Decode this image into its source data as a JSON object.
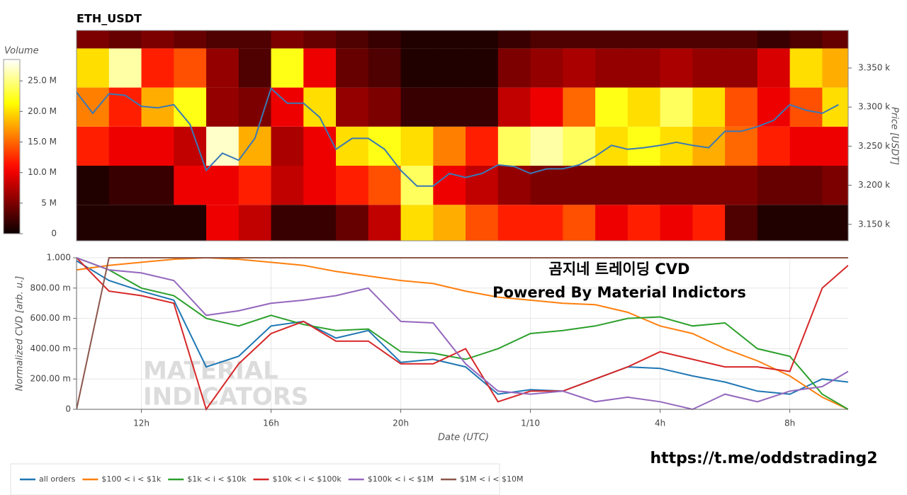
{
  "chart_data": [
    {
      "type": "heatmap",
      "title": "ETH_USDT",
      "x_bins": [
        10,
        11,
        12,
        13,
        14,
        15,
        16,
        17,
        18,
        19,
        20,
        21,
        22,
        23,
        24,
        25,
        26,
        27,
        28,
        29,
        30,
        31,
        32,
        33,
        34
      ],
      "y_bins": [
        3125,
        3175,
        3225,
        3275,
        3325,
        3375,
        3425
      ],
      "values": [
        [
          1,
          1,
          1,
          1,
          10,
          8,
          2,
          2,
          4,
          8,
          20,
          18,
          14,
          12,
          12,
          14,
          10,
          12,
          10,
          12,
          3,
          1,
          1,
          1
        ],
        [
          1,
          2,
          2,
          10,
          10,
          12,
          8,
          10,
          12,
          14,
          24,
          10,
          8,
          6,
          5,
          5,
          5,
          5,
          5,
          5,
          5,
          4,
          4,
          5
        ],
        [
          12,
          10,
          10,
          8,
          27,
          18,
          7,
          10,
          20,
          22,
          20,
          16,
          12,
          24,
          26,
          24,
          20,
          22,
          20,
          18,
          15,
          12,
          10,
          10
        ],
        [
          16,
          12,
          18,
          22,
          6,
          5,
          10,
          20,
          6,
          5,
          2,
          2,
          2,
          8,
          10,
          15,
          22,
          20,
          24,
          20,
          14,
          10,
          14,
          20
        ],
        [
          20,
          26,
          12,
          14,
          6,
          3,
          22,
          10,
          4,
          3,
          1,
          1,
          1,
          5,
          6,
          7,
          6,
          6,
          7,
          6,
          6,
          9,
          20,
          18
        ],
        [
          5,
          4,
          5,
          4,
          3,
          3,
          5,
          4,
          3,
          2,
          1,
          1,
          1,
          2,
          3,
          3,
          3,
          3,
          3,
          3,
          3,
          2,
          3,
          4
        ]
      ],
      "colormap": "hot",
      "colorbar": {
        "title": "Volume",
        "lim": [
          0,
          28.5
        ],
        "ticks": [
          0,
          {
            "value": 5,
            "label": "5 M"
          },
          {
            "value": 10,
            "label": "10.0 M"
          },
          {
            "value": 15,
            "label": "15.0 M"
          },
          {
            "value": 20,
            "label": "20.0 M"
          },
          {
            "value": 25,
            "label": "25.0 M"
          }
        ]
      },
      "xlim": [
        10,
        33.8
      ],
      "ylabel": "Price [USDT]",
      "ylim": [
        3129,
        3398
      ],
      "yticks": [
        {
          "value": 3150,
          "label": "3.150 k"
        },
        {
          "value": 3200,
          "label": "3.200 k"
        },
        {
          "value": 3250,
          "label": "3.250 k"
        },
        {
          "value": 3300,
          "label": "3.300 k"
        },
        {
          "value": 3350,
          "label": "3.350 k"
        }
      ],
      "line": {
        "color": "#3a78b5",
        "x": [
          10,
          10.5,
          11,
          11.5,
          12,
          12.5,
          13,
          13.5,
          14,
          14.5,
          15,
          15.5,
          16,
          16.5,
          17,
          17.5,
          18,
          18.5,
          19,
          19.5,
          20,
          20.5,
          21,
          21.5,
          22,
          22.5,
          23,
          23.5,
          24,
          24.5,
          25,
          25.5,
          26,
          26.5,
          27,
          27.5,
          28,
          28.5,
          29,
          29.5,
          30,
          30.5,
          31,
          31.5,
          32,
          32.5,
          33,
          33.5
        ],
        "values": [
          3319,
          3292,
          3317,
          3315,
          3301,
          3299,
          3303,
          3278,
          3219,
          3241,
          3232,
          3260,
          3324,
          3305,
          3305,
          3287,
          3246,
          3260,
          3260,
          3246,
          3219,
          3199,
          3199,
          3215,
          3210,
          3215,
          3226,
          3224,
          3215,
          3221,
          3221,
          3226,
          3237,
          3251,
          3246,
          3248,
          3251,
          3255,
          3251,
          3248,
          3269,
          3269,
          3275,
          3283,
          3303,
          3296,
          3292,
          3303
        ]
      }
    },
    {
      "type": "line",
      "annotations": [
        "곰지네 트레이딩 CVD",
        "Powered By Material Indictors"
      ],
      "watermark": [
        "MATERIAL",
        "INDICATORS"
      ],
      "xlabel": "Date (UTC)",
      "ylabel": "Normalized CVD [arb. u.]",
      "xlim": [
        10,
        33.8
      ],
      "xticks": [
        {
          "value": 12,
          "label": "12h"
        },
        {
          "value": 16,
          "label": "16h"
        },
        {
          "value": 20,
          "label": "20h"
        },
        {
          "value": 24,
          "label": "1/10"
        },
        {
          "value": 28,
          "label": "4h"
        },
        {
          "value": 32,
          "label": "8h"
        }
      ],
      "ylim": [
        0,
        1
      ],
      "yticks": [
        0,
        {
          "value": 0.2,
          "label": "200.00 m"
        },
        {
          "value": 0.4,
          "label": "400.00 m"
        },
        {
          "value": 0.6,
          "label": "600.00 m"
        },
        {
          "value": 0.8,
          "label": "800.00 m"
        },
        {
          "value": 1,
          "label": "1.000"
        }
      ],
      "grid": true,
      "legend": "bottom",
      "x": [
        10,
        11,
        12,
        13,
        14,
        15,
        16,
        17,
        18,
        19,
        20,
        21,
        22,
        23,
        24,
        25,
        26,
        27,
        28,
        29,
        30,
        31,
        32,
        33,
        33.8
      ],
      "series": [
        {
          "name": "all orders",
          "color": "#1f77b4",
          "values": [
            0.98,
            0.85,
            0.78,
            0.72,
            0.28,
            0.35,
            0.55,
            0.58,
            0.47,
            0.52,
            0.31,
            0.33,
            0.28,
            0.1,
            0.13,
            0.12,
            0.2,
            0.28,
            0.27,
            0.22,
            0.18,
            0.12,
            0.1,
            0.2,
            0.18
          ]
        },
        {
          "name": "$100 < i < $1k",
          "color": "#ff7f0e",
          "values": [
            0.92,
            0.95,
            0.97,
            0.99,
            1.0,
            0.99,
            0.97,
            0.95,
            0.91,
            0.88,
            0.85,
            0.83,
            0.78,
            0.74,
            0.72,
            0.7,
            0.69,
            0.64,
            0.55,
            0.5,
            0.4,
            0.32,
            0.22,
            0.08,
            0.0
          ]
        },
        {
          "name": "$1k < i < $10k",
          "color": "#2ca02c",
          "values": [
            1.0,
            0.92,
            0.8,
            0.75,
            0.6,
            0.55,
            0.62,
            0.56,
            0.52,
            0.53,
            0.38,
            0.37,
            0.33,
            0.4,
            0.5,
            0.52,
            0.55,
            0.6,
            0.61,
            0.55,
            0.57,
            0.4,
            0.35,
            0.1,
            0.0
          ]
        },
        {
          "name": "$10k < i < $100k",
          "color": "#d62728",
          "values": [
            1.0,
            0.78,
            0.75,
            0.7,
            0.0,
            0.3,
            0.5,
            0.58,
            0.45,
            0.45,
            0.3,
            0.3,
            0.4,
            0.05,
            0.12,
            0.12,
            0.2,
            0.28,
            0.38,
            0.33,
            0.28,
            0.28,
            0.25,
            0.8,
            0.95
          ]
        },
        {
          "name": "$100k < i < $1M",
          "color": "#9467bd",
          "values": [
            1.0,
            0.92,
            0.9,
            0.85,
            0.62,
            0.65,
            0.7,
            0.72,
            0.75,
            0.8,
            0.58,
            0.57,
            0.3,
            0.12,
            0.1,
            0.12,
            0.05,
            0.08,
            0.05,
            0.0,
            0.1,
            0.05,
            0.12,
            0.15,
            0.25
          ]
        },
        {
          "name": "$1M < i < $10M",
          "color": "#8c564b",
          "values": [
            0.0,
            1.0,
            1.0,
            1.0,
            1.0,
            1.0,
            1.0,
            1.0,
            1.0,
            1.0,
            1.0,
            1.0,
            1.0,
            1.0,
            1.0,
            1.0,
            1.0,
            1.0,
            1.0,
            1.0,
            1.0,
            1.0,
            1.0,
            1.0,
            1.0
          ]
        }
      ]
    }
  ],
  "link": "https://t.me/oddstrading2"
}
